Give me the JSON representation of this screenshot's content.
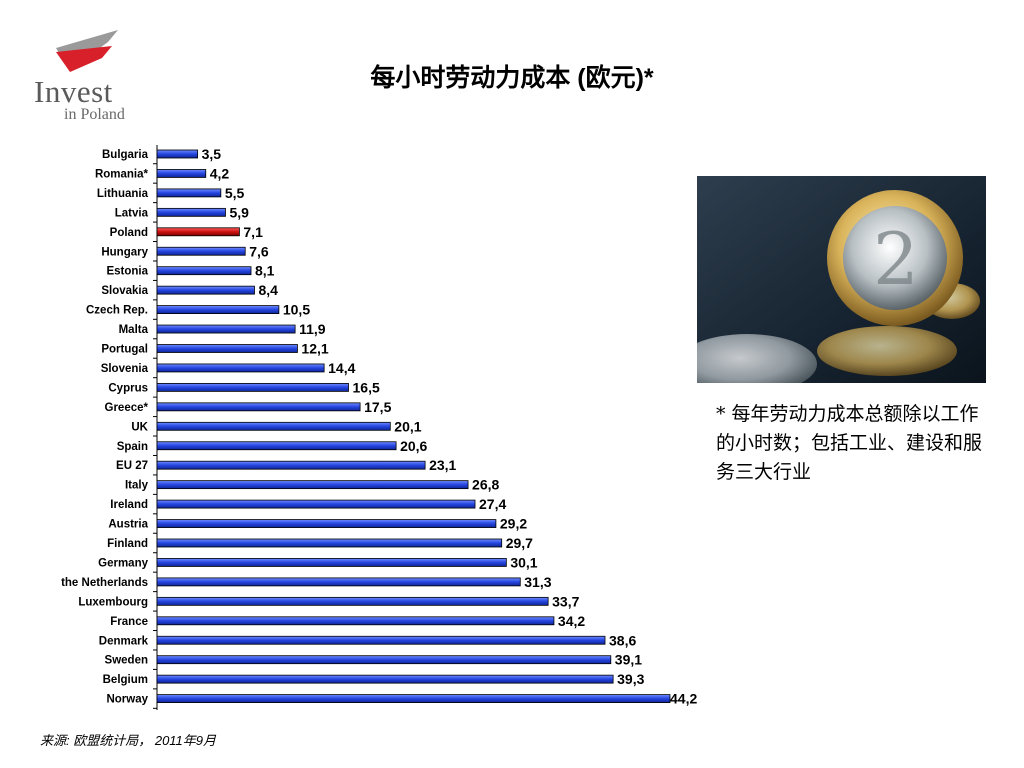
{
  "logo": {
    "word": "Invest",
    "sub": "in Poland"
  },
  "title": "每小时劳动力成本 (欧元)*",
  "note": "* 每年劳动力成本总额除以工作的小时数；包括工业、建设和服务三大行业",
  "source": "来源: 欧盟统计局， 2011年9月",
  "colors": {
    "bar": "#2244dd",
    "highlight": "#cc1111",
    "logo_red": "#d8202a",
    "logo_grey": "#9a9a9a"
  },
  "chart_data": {
    "type": "bar",
    "orientation": "horizontal",
    "title": "每小时劳动力成本 (欧元)*",
    "xlabel": "",
    "ylabel": "",
    "xlim": [
      0,
      45
    ],
    "grid": false,
    "highlight_category": "Poland",
    "categories": [
      "Bulgaria",
      "Romania*",
      "Lithuania",
      "Latvia",
      "Poland",
      "Hungary",
      "Estonia",
      "Slovakia",
      "Czech Rep.",
      "Malta",
      "Portugal",
      "Slovenia",
      "Cyprus",
      "Greece*",
      "UK",
      "Spain",
      "EU 27",
      "Italy",
      "Ireland",
      "Austria",
      "Finland",
      "Germany",
      "the Netherlands",
      "Luxembourg",
      "France",
      "Denmark",
      "Sweden",
      "Belgium",
      "Norway"
    ],
    "values": [
      3.5,
      4.2,
      5.5,
      5.9,
      7.1,
      7.6,
      8.1,
      8.4,
      10.5,
      11.9,
      12.1,
      14.4,
      16.5,
      17.5,
      20.1,
      20.6,
      23.1,
      26.8,
      27.4,
      29.2,
      29.7,
      30.1,
      31.3,
      33.7,
      34.2,
      38.6,
      39.1,
      39.3,
      44.2
    ],
    "value_labels": [
      "3,5",
      "4,2",
      "5,5",
      "5,9",
      "7,1",
      "7,6",
      "8,1",
      "8,4",
      "10,5",
      "11,9",
      "12,1",
      "14,4",
      "16,5",
      "17,5",
      "20,1",
      "20,6",
      "23,1",
      "26,8",
      "27,4",
      "29,2",
      "29,7",
      "30,1",
      "31,3",
      "33,7",
      "34,2",
      "38,6",
      "39,1",
      "39,3",
      "44,2"
    ]
  }
}
